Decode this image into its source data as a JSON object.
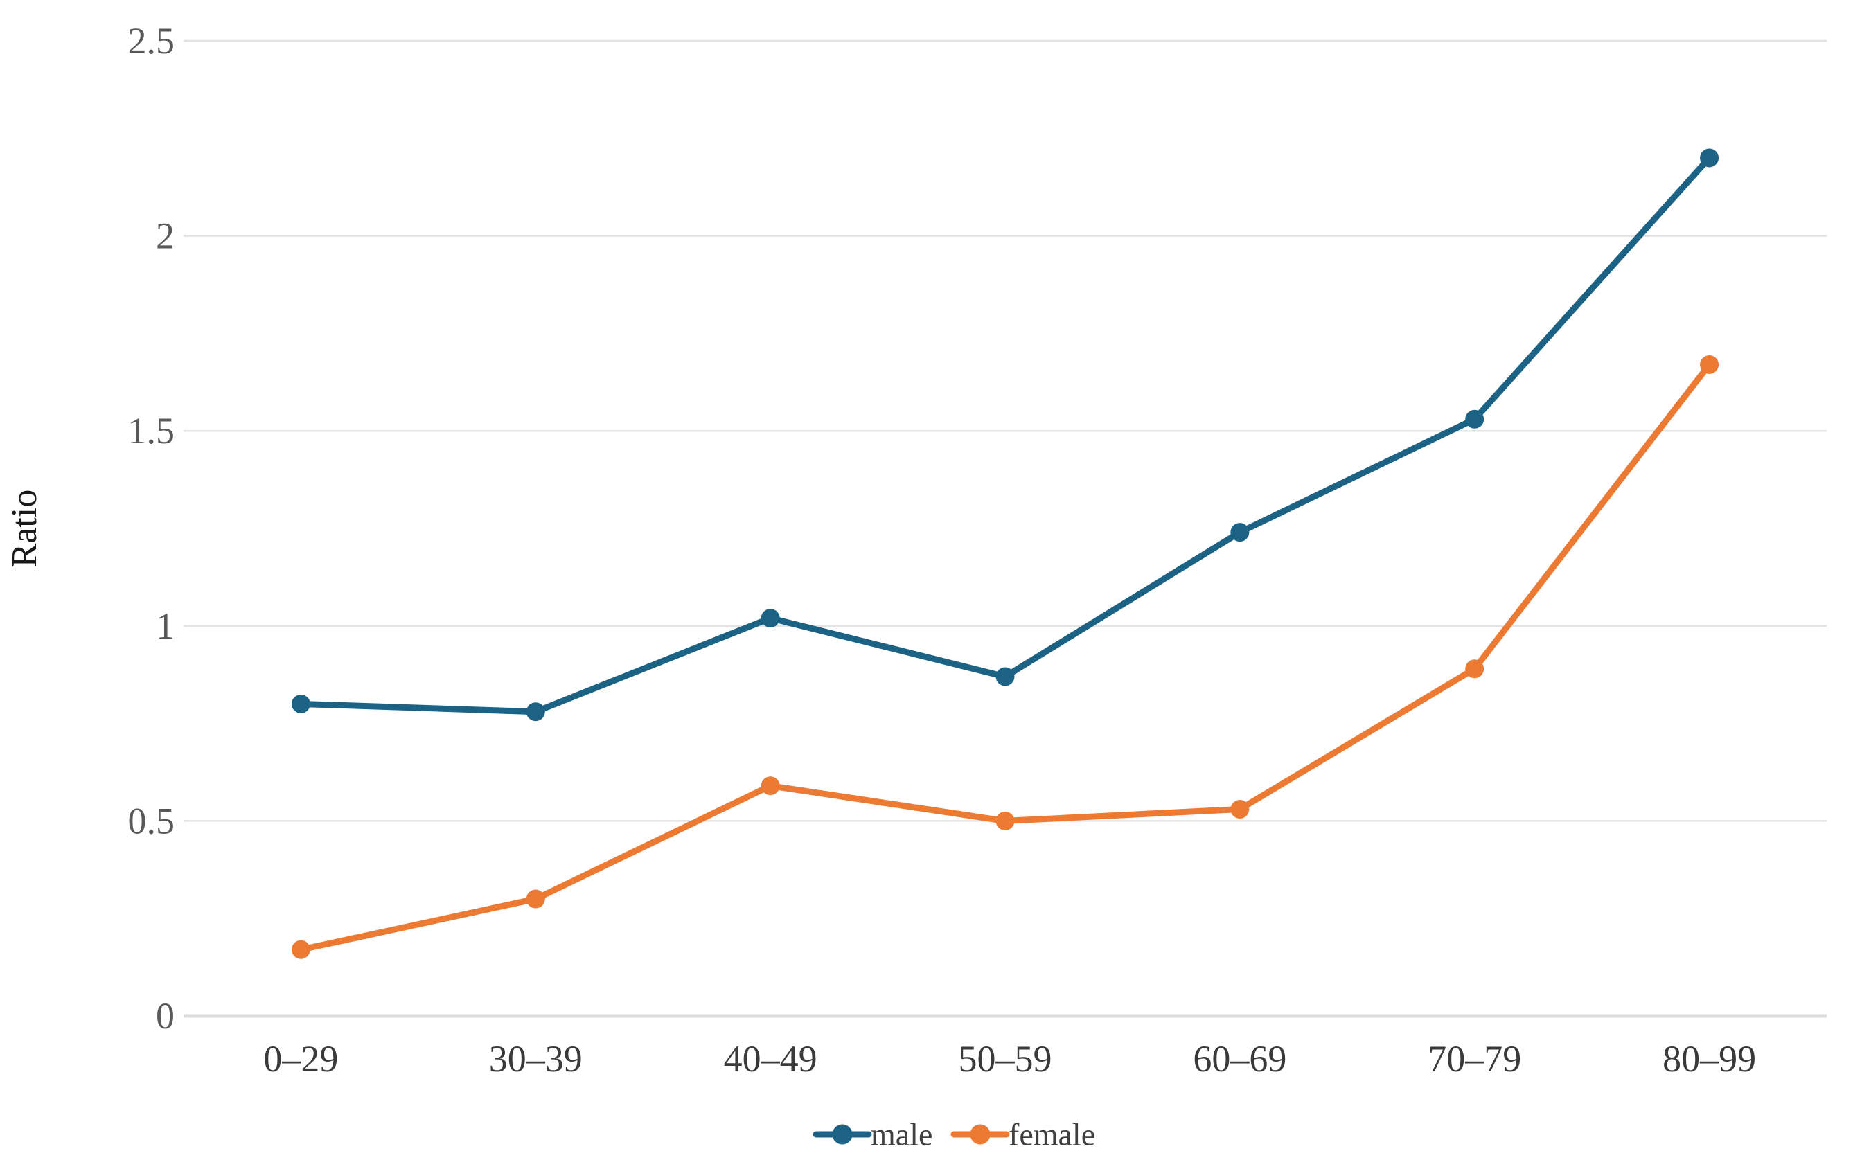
{
  "figure": {
    "background": "#ffffff"
  },
  "chart_data": {
    "type": "line",
    "title": "",
    "xlabel": "",
    "ylabel": "Ratio",
    "categories": [
      "0–29",
      "30–39",
      "40–49",
      "50–59",
      "60–69",
      "70–79",
      "80–99"
    ],
    "series": [
      {
        "name": "male",
        "color": "#1C6284",
        "values": [
          0.8,
          0.78,
          1.02,
          0.87,
          1.24,
          1.53,
          2.2
        ]
      },
      {
        "name": "female",
        "color": "#EC7A33",
        "values": [
          0.17,
          0.3,
          0.59,
          0.5,
          0.53,
          0.89,
          1.67
        ]
      }
    ],
    "ylim": [
      0,
      2.5
    ],
    "yticks": [
      {
        "value": 0,
        "label": "0"
      },
      {
        "value": 0.5,
        "label": "0.5"
      },
      {
        "value": 1,
        "label": "1"
      },
      {
        "value": 1.5,
        "label": "1.5"
      },
      {
        "value": 2,
        "label": "2"
      },
      {
        "value": 2.5,
        "label": "2.5"
      }
    ],
    "grid": true,
    "legend_position": "bottom",
    "marker": "circle"
  },
  "colors": {
    "gridline": "#E3E3E3",
    "axis_line": "#DCDCDC",
    "y_tick_label": "#595959",
    "x_tick_label": "#3A3A3A",
    "axis_title": "#1A1A1A",
    "legend_text": "#3F3F3F"
  }
}
